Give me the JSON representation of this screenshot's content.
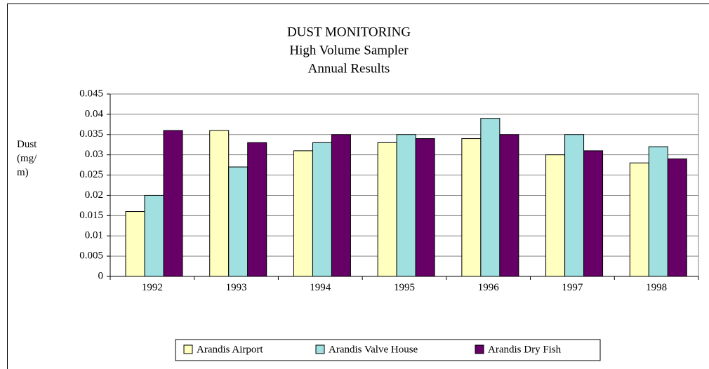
{
  "chart_data": {
    "type": "bar",
    "title": [
      "DUST MONITORING",
      "High Volume Sampler",
      "Annual Results"
    ],
    "ylabel": "Dust (mg/m)",
    "categories": [
      "1992",
      "1993",
      "1994",
      "1995",
      "1996",
      "1997",
      "1998"
    ],
    "series": [
      {
        "name": "Arandis Airport",
        "color": "#ffffc0",
        "values": [
          0.016,
          0.036,
          0.031,
          0.033,
          0.034,
          0.03,
          0.028
        ]
      },
      {
        "name": "Arandis Valve House",
        "color": "#a0e0e0",
        "values": [
          0.02,
          0.027,
          0.033,
          0.035,
          0.039,
          0.035,
          0.032
        ]
      },
      {
        "name": "Arandis Dry Fish",
        "color": "#660066",
        "values": [
          0.036,
          0.033,
          0.035,
          0.034,
          0.035,
          0.031,
          0.029
        ]
      }
    ],
    "ylim": [
      0,
      0.045
    ],
    "yticks": [
      0,
      0.005,
      0.01,
      0.015,
      0.02,
      0.025,
      0.03,
      0.035,
      0.04,
      0.045
    ],
    "grid": true,
    "legend": "bottom"
  }
}
